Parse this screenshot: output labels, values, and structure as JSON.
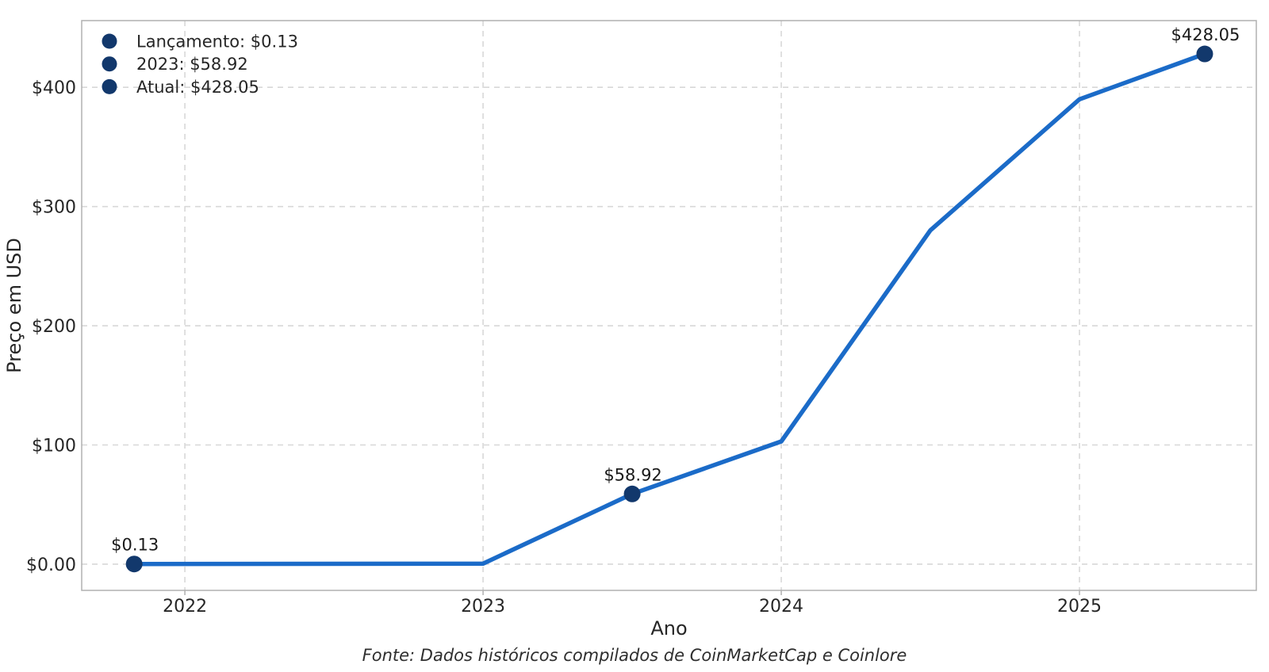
{
  "chart_data": {
    "type": "line",
    "title": "",
    "xlabel": "Ano",
    "ylabel": "Preço em USD",
    "x": [
      2021.83,
      2023.0,
      2023.5,
      2024.0,
      2024.5,
      2025.0,
      2025.42
    ],
    "y": [
      0.13,
      0.5,
      58.92,
      103,
      280,
      390,
      428.05
    ],
    "x_ticks": {
      "values": [
        2022,
        2023,
        2024,
        2025
      ],
      "labels": [
        "2022",
        "2023",
        "2024",
        "2025"
      ]
    },
    "y_ticks": {
      "values": [
        0,
        100,
        200,
        300,
        400
      ],
      "labels": [
        "$0.00",
        "$100",
        "$200",
        "$300",
        "$400"
      ]
    },
    "xlim": [
      2021.654,
      2025.593
    ],
    "ylim": [
      -22,
      456
    ],
    "grid": "dashed-both",
    "legend_position": "top-left-frameless",
    "highlighted_points": [
      {
        "x": 2021.83,
        "y": 0.13,
        "label": "$0.13"
      },
      {
        "x": 2023.5,
        "y": 58.92,
        "label": "$58.92"
      },
      {
        "x": 2025.42,
        "y": 428.05,
        "label": "$428.05"
      }
    ]
  },
  "legend": {
    "items": [
      {
        "marker": "circle-icon",
        "label": "Lançamento: $0.13"
      },
      {
        "marker": "circle-icon",
        "label": "2023: $58.92"
      },
      {
        "marker": "circle-icon",
        "label": "Atual: $428.05"
      }
    ]
  },
  "footer": {
    "text": "Fonte: Dados históricos compilados de CoinMarketCap e Coinlore"
  },
  "colors": {
    "line": "#1b6bc8",
    "marker": "#12386c",
    "grid": "#d8d8d8",
    "spine": "#b0b0b0",
    "tick_text": "#262626",
    "annotation_text": "#1a1a1a",
    "footer_text": "#2e2e2e",
    "background": "#ffffff"
  }
}
